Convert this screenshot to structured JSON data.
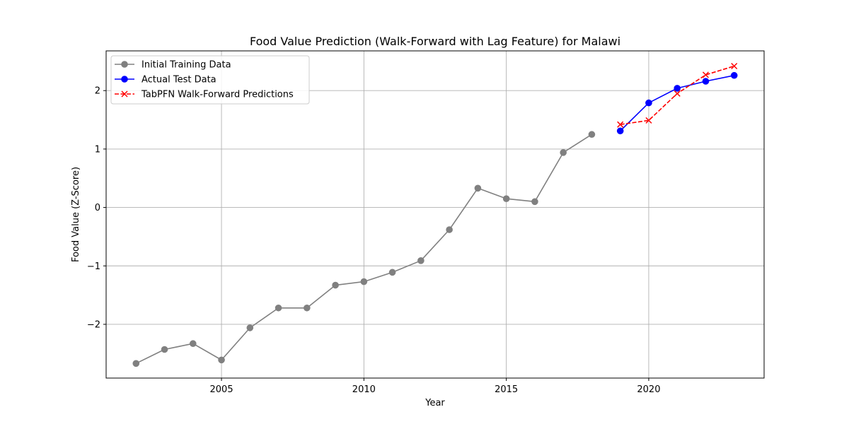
{
  "chart_data": {
    "type": "line",
    "title": "Food Value Prediction (Walk-Forward with Lag Feature) for Malawi",
    "xlabel": "Year",
    "ylabel": "Food Value (Z-Score)",
    "xlim": [
      2000.95,
      2024.05
    ],
    "ylim": [
      -2.92,
      2.68
    ],
    "x_ticks": [
      2005,
      2010,
      2015,
      2020
    ],
    "y_ticks": [
      -2,
      -1,
      0,
      1,
      2
    ],
    "y_tick_labels": [
      "−2",
      "−1",
      "0",
      "1",
      "2"
    ],
    "grid": true,
    "legend_position": "upper-left",
    "series": [
      {
        "name": "Initial Training Data",
        "color": "#808080",
        "line_style": "solid",
        "marker": "circle",
        "x": [
          2002,
          2003,
          2004,
          2005,
          2006,
          2007,
          2008,
          2009,
          2010,
          2011,
          2012,
          2013,
          2014,
          2015,
          2016,
          2017,
          2018
        ],
        "y": [
          -2.67,
          -2.43,
          -2.33,
          -2.61,
          -2.06,
          -1.72,
          -1.72,
          -1.33,
          -1.27,
          -1.11,
          -0.91,
          -0.38,
          0.33,
          0.15,
          0.1,
          0.94,
          1.25
        ]
      },
      {
        "name": "Actual Test Data",
        "color": "#0000ff",
        "line_style": "solid",
        "marker": "circle",
        "x": [
          2019,
          2020,
          2021,
          2022,
          2023
        ],
        "y": [
          1.31,
          1.79,
          2.04,
          2.16,
          2.26
        ]
      },
      {
        "name": "TabPFN Walk-Forward Predictions",
        "color": "#ff0000",
        "line_style": "dashed",
        "marker": "x",
        "x": [
          2019,
          2020,
          2021,
          2022,
          2023
        ],
        "y": [
          1.42,
          1.49,
          1.95,
          2.27,
          2.42
        ]
      }
    ]
  }
}
